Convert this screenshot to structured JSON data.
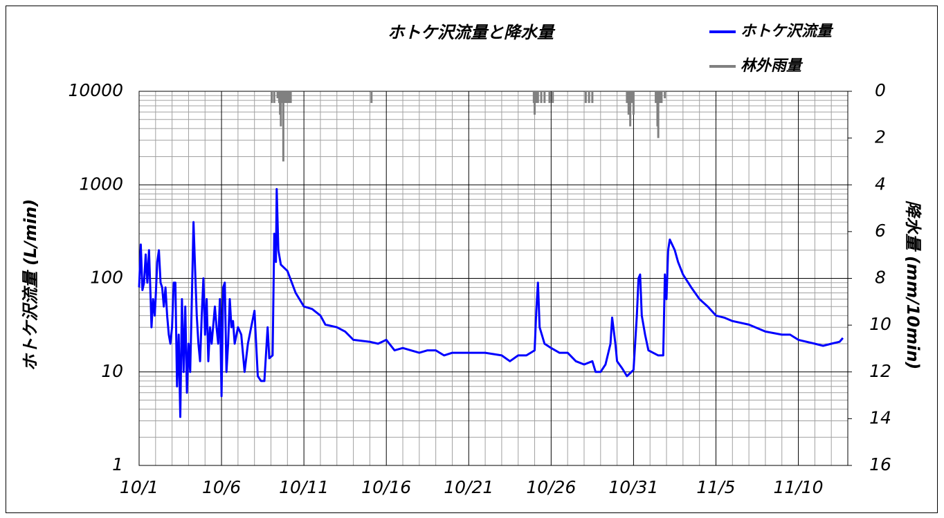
{
  "chart_data": {
    "type": "line",
    "title": "ホトケ沢流量と降水量",
    "ylabel": "ホトケ沢流量 (L/min)",
    "y2label": "降水量 (mm/10min)",
    "yscale": "log",
    "ylim": [
      1,
      10000
    ],
    "yticks": [
      1,
      10,
      100,
      1000,
      10000
    ],
    "yminorticks": [
      2,
      3,
      4,
      5,
      6,
      7,
      8,
      9,
      20,
      30,
      40,
      50,
      60,
      70,
      80,
      90,
      200,
      300,
      400,
      500,
      600,
      700,
      800,
      900,
      2000,
      3000,
      4000,
      5000,
      6000,
      7000,
      8000,
      9000
    ],
    "y2lim": [
      0,
      16
    ],
    "y2_inverted": true,
    "y2ticks": [
      0,
      2,
      4,
      6,
      8,
      10,
      12,
      14,
      16
    ],
    "xlim": [
      0,
      43
    ],
    "xticks": [
      {
        "value": 0,
        "label": "10/1"
      },
      {
        "value": 5,
        "label": "10/6"
      },
      {
        "value": 10,
        "label": "10/11"
      },
      {
        "value": 15,
        "label": "10/16"
      },
      {
        "value": 20,
        "label": "10/21"
      },
      {
        "value": 25,
        "label": "10/26"
      },
      {
        "value": 30,
        "label": "10/31"
      },
      {
        "value": 35,
        "label": "11/5"
      },
      {
        "value": 40,
        "label": "11/10"
      }
    ],
    "xminorticks": [
      1,
      2,
      3,
      4,
      6,
      7,
      8,
      9,
      11,
      12,
      13,
      14,
      16,
      17,
      18,
      19,
      21,
      22,
      23,
      24,
      26,
      27,
      28,
      29,
      31,
      32,
      33,
      34,
      36,
      37,
      38,
      39,
      41,
      42,
      43
    ],
    "grid": true,
    "legend": "top-right",
    "series": [
      {
        "name": "ホトケ沢流量",
        "color": "#0000ff",
        "axis": "y",
        "x": [
          0.0,
          0.1,
          0.2,
          0.3,
          0.4,
          0.5,
          0.6,
          0.7,
          0.75,
          0.85,
          0.95,
          1.0,
          1.1,
          1.2,
          1.3,
          1.4,
          1.5,
          1.6,
          1.7,
          1.8,
          1.9,
          2.0,
          2.1,
          2.2,
          2.3,
          2.4,
          2.5,
          2.6,
          2.7,
          2.8,
          2.9,
          3.0,
          3.1,
          3.2,
          3.3,
          3.4,
          3.5,
          3.6,
          3.7,
          3.8,
          3.9,
          4.0,
          4.1,
          4.2,
          4.3,
          4.4,
          4.6,
          4.7,
          4.8,
          4.9,
          5.0,
          5.1,
          5.2,
          5.3,
          5.4,
          5.5,
          5.6,
          5.7,
          5.8,
          6.0,
          6.2,
          6.4,
          6.6,
          6.8,
          7.0,
          7.1,
          7.2,
          7.4,
          7.6,
          7.8,
          7.9,
          8.1,
          8.2,
          8.3,
          8.35,
          8.45,
          8.6,
          9.0,
          9.5,
          10.0,
          10.5,
          11.0,
          11.3,
          12.0,
          12.5,
          13.0,
          14.0,
          14.5,
          15.0,
          15.5,
          16.0,
          17.0,
          17.5,
          18.0,
          18.5,
          19.0,
          20.0,
          21.0,
          22.0,
          22.5,
          23.0,
          23.5,
          24.0,
          24.1,
          24.2,
          24.3,
          24.6,
          25.0,
          25.5,
          26.0,
          26.5,
          27.0,
          27.5,
          27.7,
          28.0,
          28.3,
          28.6,
          28.7,
          28.9,
          29.0,
          29.3,
          29.6,
          30.0,
          30.2,
          30.3,
          30.4,
          30.5,
          30.7,
          30.9,
          31.5,
          31.8,
          31.9,
          32.0,
          32.1,
          32.2,
          32.5,
          32.7,
          33.0,
          33.5,
          34.0,
          34.5,
          35.0,
          35.5,
          36.0,
          37.0,
          38.0,
          39.0,
          39.5,
          40.0,
          41.0,
          41.5,
          42.0,
          42.5,
          42.7
        ],
        "values": [
          80,
          230,
          75,
          90,
          180,
          90,
          200,
          60,
          30,
          60,
          40,
          60,
          150,
          200,
          90,
          80,
          50,
          80,
          40,
          25,
          20,
          30,
          90,
          90,
          7,
          25,
          3.3,
          60,
          10,
          50,
          6,
          20,
          10,
          60,
          400,
          120,
          40,
          20,
          13,
          40,
          100,
          25,
          60,
          13,
          30,
          20,
          50,
          30,
          20,
          60,
          5.5,
          80,
          90,
          10,
          20,
          60,
          30,
          35,
          20,
          30,
          25,
          10,
          20,
          30,
          45,
          20,
          9,
          8,
          8,
          30,
          14,
          15,
          300,
          150,
          900,
          200,
          140,
          120,
          70,
          50,
          47,
          40,
          32,
          30,
          27,
          22,
          21,
          20,
          22,
          17,
          18,
          16,
          17,
          17,
          15,
          16,
          16,
          16,
          15,
          13,
          15,
          15,
          17,
          45,
          90,
          30,
          20,
          18,
          16,
          16,
          13,
          12,
          13,
          10,
          10,
          12,
          20,
          38,
          20,
          13,
          11,
          9,
          10.5,
          40,
          100,
          110,
          40,
          25,
          17,
          15,
          15,
          110,
          60,
          200,
          260,
          200,
          150,
          110,
          80,
          60,
          50,
          40,
          38,
          35,
          32,
          27,
          25,
          25,
          22,
          20,
          19,
          20,
          21,
          23
        ]
      },
      {
        "name": "林外雨量",
        "color": "#808080",
        "axis": "y2",
        "x": [
          8.05,
          8.2,
          8.4,
          8.5,
          8.55,
          8.6,
          8.7,
          8.75,
          8.8,
          8.9,
          9.0,
          9.1,
          9.2,
          14.1,
          23.95,
          24.0,
          24.1,
          24.2,
          24.4,
          24.6,
          24.9,
          25.1,
          27.1,
          27.3,
          27.5,
          29.6,
          29.7,
          29.8,
          29.9,
          30.0,
          31.35,
          31.45,
          31.5,
          31.6,
          31.7,
          31.9
        ],
        "values": [
          0.5,
          0.5,
          0.3,
          0.5,
          1.0,
          1.5,
          0.5,
          3.0,
          0.5,
          0.5,
          0.5,
          0.5,
          0.5,
          0.5,
          0.5,
          1.0,
          0.5,
          0.5,
          0.5,
          0.5,
          0.5,
          0.5,
          0.5,
          0.5,
          0.5,
          0.5,
          1.0,
          1.5,
          0.5,
          1.0,
          0.5,
          1.5,
          2.0,
          0.5,
          0.5,
          0.3
        ]
      }
    ]
  }
}
